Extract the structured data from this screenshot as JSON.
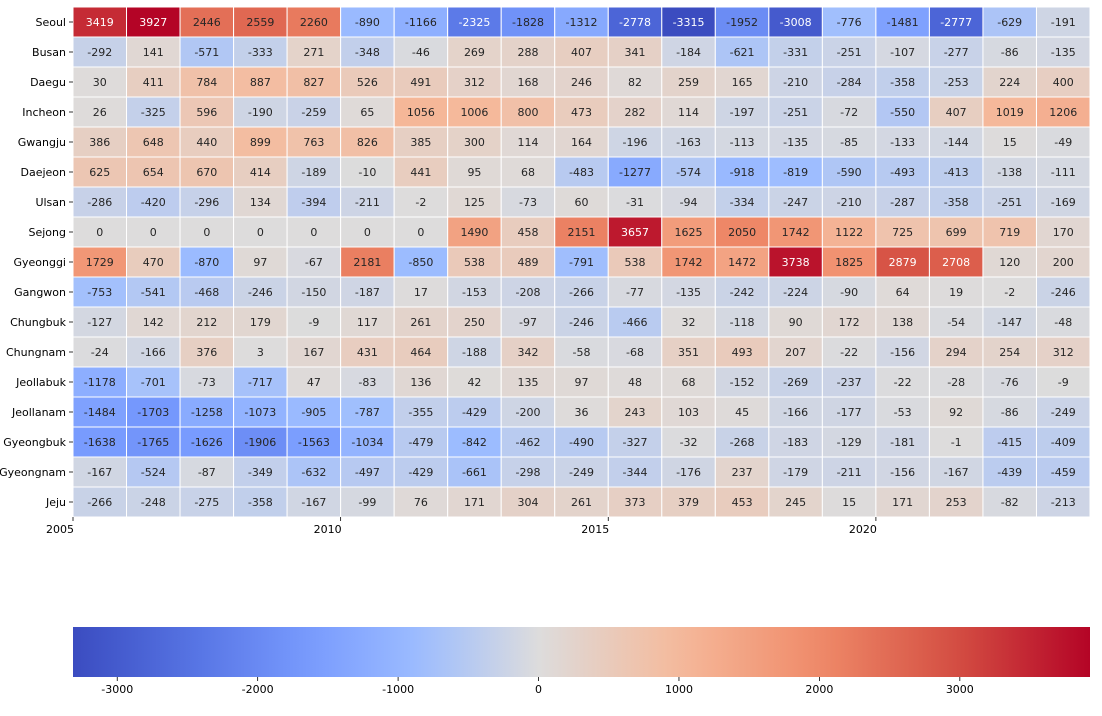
{
  "chart_data": {
    "type": "heatmap",
    "title": "",
    "xlabel": "",
    "ylabel": "",
    "columns": 19,
    "rows": [
      "Seoul",
      "Busan",
      "Daegu",
      "Incheon",
      "Gwangju",
      "Daejeon",
      "Ulsan",
      "Sejong",
      "Gyeonggi",
      "Gangwon",
      "Chungbuk",
      "Chungnam",
      "Jeollabuk",
      "Jeollanam",
      "Gyeongbuk",
      "Gyeongnam",
      "Jeju"
    ],
    "x_ticks": [
      {
        "label": "2005",
        "col": 0
      },
      {
        "label": "2010",
        "col": 5
      },
      {
        "label": "2015",
        "col": 10
      },
      {
        "label": "2020",
        "col": 15
      }
    ],
    "values": [
      [
        3419,
        3927,
        2446,
        2559,
        2260,
        -890,
        -1166,
        -2325,
        -1828,
        -1312,
        -2778,
        -3315,
        -1952,
        -3008,
        -776,
        -1481,
        -2777,
        -629,
        -191
      ],
      [
        -292,
        141,
        -571,
        -333,
        271,
        -348,
        -46,
        269,
        288,
        407,
        341,
        -184,
        -621,
        -331,
        -251,
        -107,
        -277,
        -86,
        -135
      ],
      [
        30,
        411,
        784,
        887,
        827,
        526,
        491,
        312,
        168,
        246,
        82,
        259,
        165,
        -210,
        -284,
        -358,
        -253,
        224,
        400
      ],
      [
        26,
        -325,
        596,
        -190,
        -259,
        65,
        1056,
        1006,
        800,
        473,
        282,
        114,
        -197,
        -251,
        -72,
        -550,
        407,
        1019,
        1206
      ],
      [
        386,
        648,
        440,
        899,
        763,
        826,
        385,
        300,
        114,
        164,
        -196,
        -163,
        -113,
        -135,
        -85,
        -133,
        -144,
        15,
        -49
      ],
      [
        625,
        654,
        670,
        414,
        -189,
        -10,
        441,
        95,
        68,
        -483,
        -1277,
        -574,
        -918,
        -819,
        -590,
        -493,
        -413,
        -138,
        -111
      ],
      [
        -286,
        -420,
        -296,
        134,
        -394,
        -211,
        -2,
        125,
        -73,
        60,
        -31,
        -94,
        -334,
        -247,
        -210,
        -287,
        -358,
        -251,
        -169
      ],
      [
        0,
        0,
        0,
        0,
        0,
        0,
        0,
        1490,
        458,
        2151,
        3657,
        1625,
        2050,
        1742,
        1122,
        725,
        699,
        719,
        170
      ],
      [
        1729,
        470,
        -870,
        97,
        -67,
        2181,
        -850,
        538,
        489,
        -791,
        538,
        1742,
        1472,
        3738,
        1825,
        2879,
        2708,
        120,
        200
      ],
      [
        -753,
        -541,
        -468,
        -246,
        -150,
        -187,
        17,
        -153,
        -208,
        -266,
        -77,
        -135,
        -242,
        -224,
        -90,
        64,
        19,
        -2,
        -246
      ],
      [
        -127,
        142,
        212,
        179,
        -9,
        117,
        261,
        250,
        -97,
        -246,
        -466,
        32,
        -118,
        90,
        172,
        138,
        -54,
        -147,
        -48
      ],
      [
        -24,
        -166,
        376,
        3,
        167,
        431,
        464,
        -188,
        342,
        -58,
        -68,
        351,
        493,
        207,
        -22,
        -156,
        294,
        254,
        312
      ],
      [
        -1178,
        -701,
        -73,
        -717,
        47,
        -83,
        136,
        42,
        135,
        97,
        48,
        68,
        -152,
        -269,
        -237,
        -22,
        -28,
        -76,
        -9
      ],
      [
        -1484,
        -1703,
        -1258,
        -1073,
        -905,
        -787,
        -355,
        -429,
        -200,
        36,
        243,
        103,
        45,
        -166,
        -177,
        -53,
        92,
        -86,
        -249
      ],
      [
        -1638,
        -1765,
        -1626,
        -1906,
        -1563,
        -1034,
        -479,
        -842,
        -462,
        -490,
        -327,
        -32,
        -268,
        -183,
        -129,
        -181,
        -1,
        -415,
        -409
      ],
      [
        -167,
        -524,
        -87,
        -349,
        -632,
        -497,
        -429,
        -661,
        -298,
        -249,
        -344,
        -176,
        237,
        -179,
        -211,
        -156,
        -167,
        -439,
        -459
      ],
      [
        -266,
        -248,
        -275,
        -358,
        -167,
        -99,
        76,
        171,
        304,
        261,
        373,
        379,
        453,
        245,
        15,
        171,
        253,
        -82,
        -213
      ]
    ],
    "colormap": "coolwarm",
    "colors": {
      "low": "#3b4cc0",
      "mid": "#dddcdc",
      "high": "#b40426"
    },
    "colorbar": {
      "range": [
        -3315,
        3927
      ],
      "ticks": [
        -3000,
        -2000,
        -1000,
        0,
        1000,
        2000,
        3000
      ],
      "orientation": "horizontal",
      "placement": "bottom"
    },
    "grid": false
  }
}
